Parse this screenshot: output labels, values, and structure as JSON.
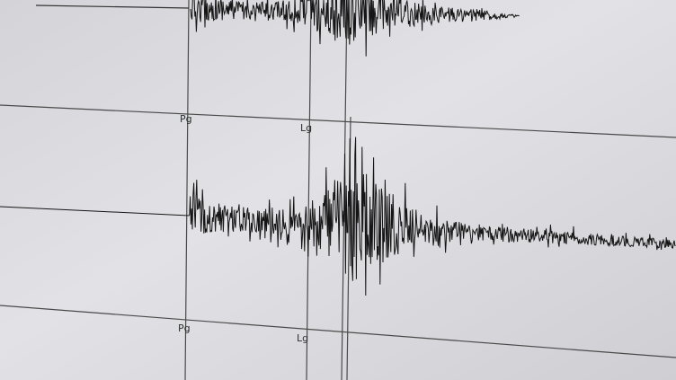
{
  "phase_labels": {
    "upper_pg": "Pg",
    "upper_lg": "Lg",
    "lower_pg": "Pg",
    "lower_lg": "Lg"
  },
  "colors": {
    "background": "#dcdce0",
    "trace": "#151515",
    "gridline": "#4a4a4a"
  }
}
